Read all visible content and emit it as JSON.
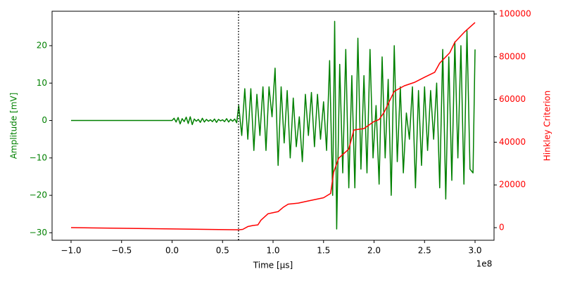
{
  "chart_data": {
    "type": "line",
    "xlabel": "Time [μs]",
    "ylabel": "Amplitude [mV]",
    "y2label": "Hinkley Criterion",
    "x_offset_label": "1e8",
    "xlim": [
      -118800000,
      318800000
    ],
    "xticks": [
      {
        "value": -100000000,
        "label": "−1.0"
      },
      {
        "value": -50000000,
        "label": "−0.5"
      },
      {
        "value": 0,
        "label": "0.0"
      },
      {
        "value": 50000000,
        "label": "0.5"
      },
      {
        "value": 100000000,
        "label": "1.0"
      },
      {
        "value": 150000000,
        "label": "1.5"
      },
      {
        "value": 200000000,
        "label": "2.0"
      },
      {
        "value": 250000000,
        "label": "2.5"
      },
      {
        "value": 300000000,
        "label": "3.0"
      }
    ],
    "ylim": [
      -32,
      29.2
    ],
    "yticks": [
      {
        "value": -30,
        "label": "−30"
      },
      {
        "value": -20,
        "label": "−20"
      },
      {
        "value": -10,
        "label": "−10"
      },
      0,
      10,
      20
    ],
    "y2lim": [
      -5900,
      101300
    ],
    "y2ticks": [
      0,
      20000,
      40000,
      60000,
      80000,
      100000
    ],
    "grid": false,
    "vline": 65800000,
    "series": [
      {
        "color": "#008000",
        "axis": "y",
        "x": [
          -100000000,
          0,
          2000000,
          4000000,
          6000000,
          8000000,
          10000000,
          12000000,
          14000000,
          16000000,
          18000000,
          20000000,
          22000000,
          24000000,
          26000000,
          28000000,
          30000000,
          32000000,
          34000000,
          36000000,
          38000000,
          40000000,
          42000000,
          44000000,
          46000000,
          48000000,
          50000000,
          52000000,
          54000000,
          56000000,
          58000000,
          60000000,
          62000000,
          64000000,
          66000000,
          69000000,
          72000000,
          75000000,
          78000000,
          81000000,
          84000000,
          87000000,
          90000000,
          93000000,
          96000000,
          99000000,
          102000000,
          105000000,
          108000000,
          111000000,
          114000000,
          117000000,
          120000000,
          123000000,
          126000000,
          129000000,
          132000000,
          135000000,
          138000000,
          141000000,
          144000000,
          147000000,
          150000000,
          153000000,
          156000000,
          159000000,
          161000000,
          163000000,
          166000000,
          169000000,
          172000000,
          175000000,
          178000000,
          181000000,
          184000000,
          187000000,
          190000000,
          193000000,
          196000000,
          199000000,
          202000000,
          205000000,
          208000000,
          211000000,
          214000000,
          217000000,
          220000000,
          223000000,
          226000000,
          229000000,
          232000000,
          235000000,
          238000000,
          241000000,
          244000000,
          247000000,
          250000000,
          253000000,
          256000000,
          259000000,
          262000000,
          265000000,
          268000000,
          271000000,
          274000000,
          277000000,
          280000000,
          283000000,
          286000000,
          289000000,
          292000000,
          295000000,
          298000000,
          300000000
        ],
        "values": [
          0,
          0,
          0.6,
          -0.4,
          0.8,
          -0.9,
          0.5,
          -0.3,
          0.9,
          -0.8,
          1.0,
          -1.1,
          0.4,
          -0.2,
          0.3,
          -0.5,
          0.6,
          -0.4,
          0.3,
          -0.2,
          0.2,
          -0.3,
          0.4,
          -0.5,
          0.3,
          -0.1,
          0.2,
          -0.3,
          0.5,
          -0.4,
          0.3,
          -0.2,
          0.4,
          -0.6,
          4,
          -4,
          8.5,
          -5,
          8.5,
          -8,
          7,
          -4,
          9,
          -8,
          9,
          1,
          14,
          -12,
          9,
          -6,
          8,
          -10,
          6,
          -7,
          1,
          -11,
          7,
          -4,
          7.5,
          -7,
          7,
          -5,
          5,
          -8,
          16,
          -20,
          26.5,
          -29,
          15,
          -14,
          19,
          -18,
          12,
          -18,
          22,
          -13,
          12,
          -14,
          19,
          -10,
          4,
          -17,
          17,
          -10,
          11,
          -20,
          20,
          -11,
          9,
          -14,
          2,
          -5,
          9,
          -18,
          8,
          -12,
          9,
          -8,
          8,
          -5,
          10,
          -18,
          19,
          -21,
          17,
          -16,
          21,
          -10,
          20,
          -17,
          24,
          -13,
          -14,
          19
        ]
      },
      {
        "color": "#ff0000",
        "axis": "y2",
        "x": [
          -100000000,
          66000000,
          70000000,
          75000000,
          80000000,
          85000000,
          88000000,
          95000000,
          100000000,
          105000000,
          110000000,
          115000000,
          125000000,
          135000000,
          145000000,
          150000000,
          157000000,
          160000000,
          165000000,
          175000000,
          180000000,
          190000000,
          200000000,
          205000000,
          210000000,
          215000000,
          220000000,
          230000000,
          240000000,
          250000000,
          260000000,
          265000000,
          275000000,
          280000000,
          290000000,
          300000000
        ],
        "values": [
          0,
          -1000,
          -800,
          500,
          1000,
          1300,
          3500,
          6500,
          7000,
          7500,
          9500,
          11000,
          11500,
          12500,
          13500,
          14000,
          16000,
          26000,
          32500,
          36800,
          45700,
          46400,
          49700,
          50600,
          54000,
          59000,
          63800,
          66400,
          68000,
          70400,
          72700,
          77000,
          81900,
          86800,
          91800,
          96000
        ]
      }
    ]
  }
}
